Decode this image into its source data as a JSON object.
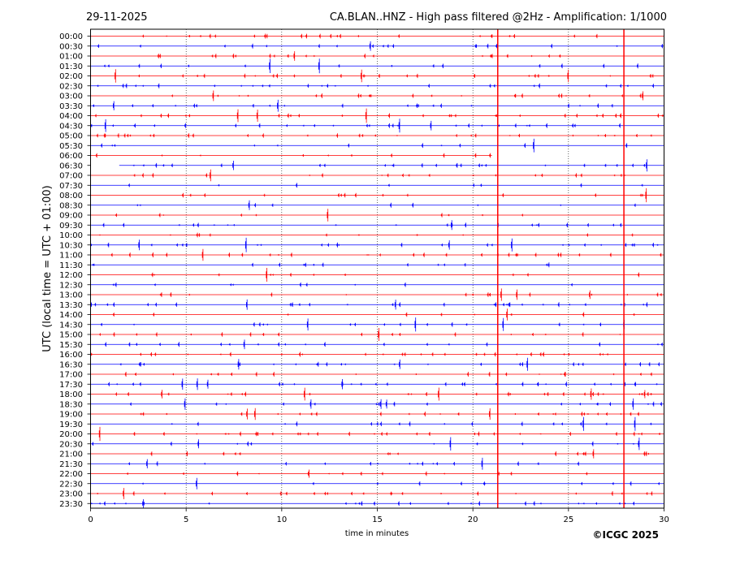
{
  "header": {
    "date": "29-11-2025",
    "title": "CA.BLAN..HNZ - High pass filtered @2Hz - Amplification: 1/1000"
  },
  "footer": {
    "copyright": "©ICGC 2025"
  },
  "colors": {
    "trace_a": "#ff0000",
    "trace_b": "#0000ff",
    "marker": "#ff0000",
    "grid": "#000000"
  },
  "chart_data": {
    "type": "line",
    "xlabel": "time in minutes",
    "ylabel": "UTC (local time = UTC + 01:00)",
    "xlim": [
      0,
      30
    ],
    "x_ticks": [
      "0",
      "5",
      "10",
      "15",
      "20",
      "25",
      "30"
    ],
    "grid_x_minutes": [
      5,
      10,
      15,
      20,
      25
    ],
    "row_labels": [
      "00:00",
      "00:30",
      "01:00",
      "01:30",
      "02:00",
      "02:30",
      "03:00",
      "03:30",
      "04:00",
      "04:30",
      "05:00",
      "05:30",
      "06:00",
      "06:30",
      "07:00",
      "07:30",
      "08:00",
      "08:30",
      "09:00",
      "09:30",
      "10:00",
      "10:30",
      "11:00",
      "11:30",
      "12:00",
      "12:30",
      "13:00",
      "13:30",
      "14:00",
      "14:30",
      "15:00",
      "15:30",
      "16:00",
      "16:30",
      "17:00",
      "17:30",
      "18:00",
      "18:30",
      "19:00",
      "19:30",
      "20:00",
      "20:30",
      "21:00",
      "21:30",
      "22:00",
      "22:30",
      "23:00",
      "23:30"
    ],
    "row_colors": [
      "trace_a",
      "trace_b"
    ],
    "vertical_markers_minutes": [
      21.3,
      27.9
    ],
    "partial_rows": [
      {
        "label": "06:00",
        "end_minute": 21.0
      },
      {
        "label": "06:30",
        "start_minute": 1.5
      }
    ],
    "grid": true
  }
}
